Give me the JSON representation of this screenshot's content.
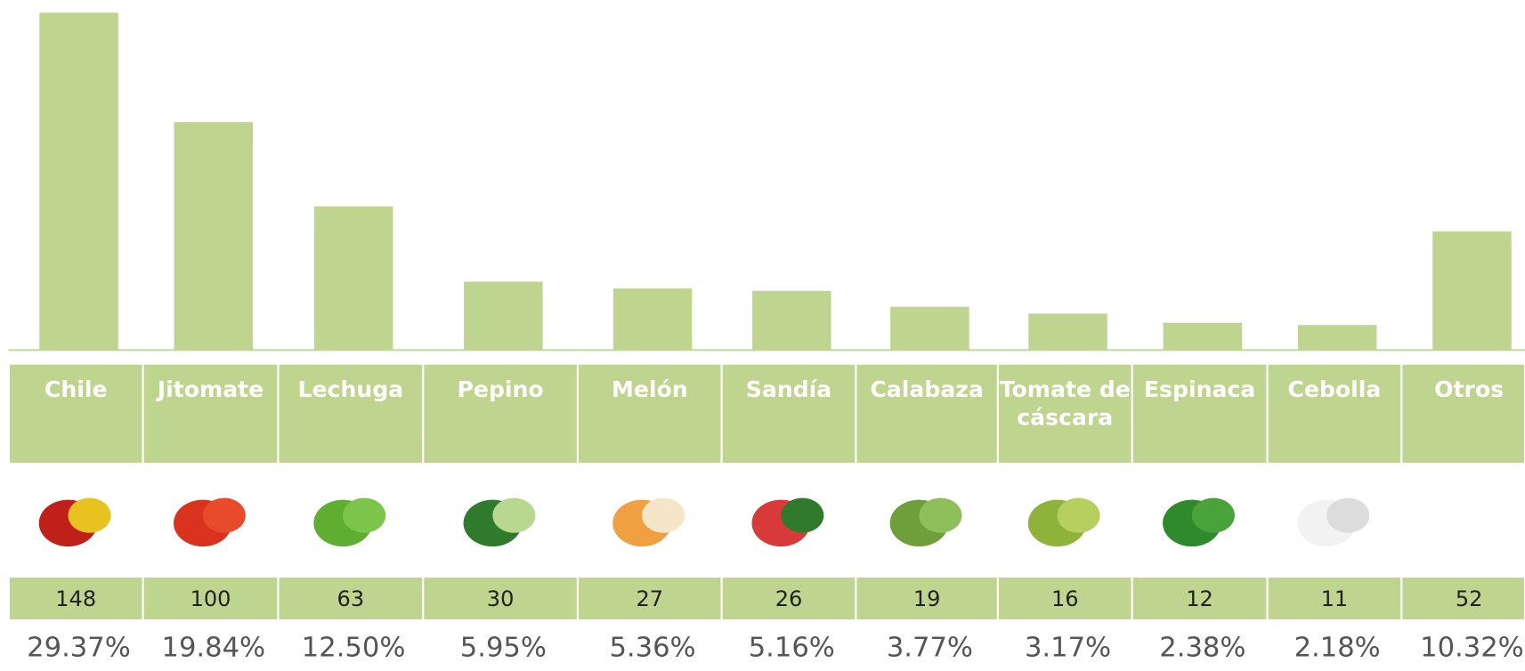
{
  "chart_data": {
    "type": "bar",
    "categories": [
      "Chile",
      "Jitomate",
      "Lechuga",
      "Pepino",
      "Melón",
      "Sandía",
      "Calabaza",
      "Tomate de cáscara",
      "Espinaca",
      "Cebolla",
      "Otros"
    ],
    "values": [
      148,
      100,
      63,
      30,
      27,
      26,
      19,
      16,
      12,
      11,
      52
    ],
    "shares": [
      "29.37%",
      "19.84%",
      "12.50%",
      "5.95%",
      "5.36%",
      "5.16%",
      "3.77%",
      "3.17%",
      "2.38%",
      "2.18%",
      "10.32%"
    ],
    "color": "#bed48f",
    "ylim": [
      0,
      148
    ]
  }
}
